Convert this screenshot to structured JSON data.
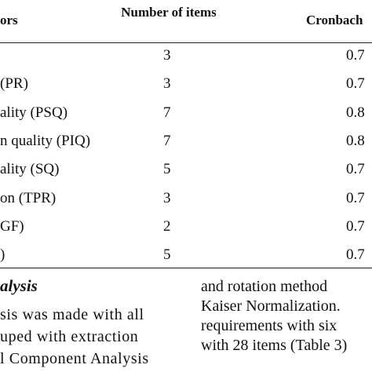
{
  "table": {
    "header": [
      "ors",
      "Number of items",
      "Cronbach"
    ],
    "rows": [
      {
        "items": "3",
        "alpha": "0.7"
      },
      {
        "label": "(PR)",
        "items": "3",
        "alpha": "0.7"
      },
      {
        "label": "ality (PSQ)",
        "items": "7",
        "alpha": "0.8"
      },
      {
        "label": "n quality (PIQ)",
        "items": "7",
        "alpha": "0.8"
      },
      {
        "label": "ality (SQ)",
        "items": "5",
        "alpha": "0.7"
      },
      {
        "label": "on (TPR)",
        "items": "3",
        "alpha": "0.7"
      },
      {
        "label": "GF)",
        "items": "2",
        "alpha": "0.7"
      },
      {
        "label": ")",
        "items": "5",
        "alpha": "0.7"
      }
    ]
  },
  "section": {
    "heading": "alysis",
    "left": [
      "sis was made with all",
      "uped with extraction",
      "l Component Analysis"
    ],
    "right": [
      "and rotation method",
      "Kaiser Normalization.",
      "requirements with six",
      "with 28 items (Table 3)"
    ]
  }
}
